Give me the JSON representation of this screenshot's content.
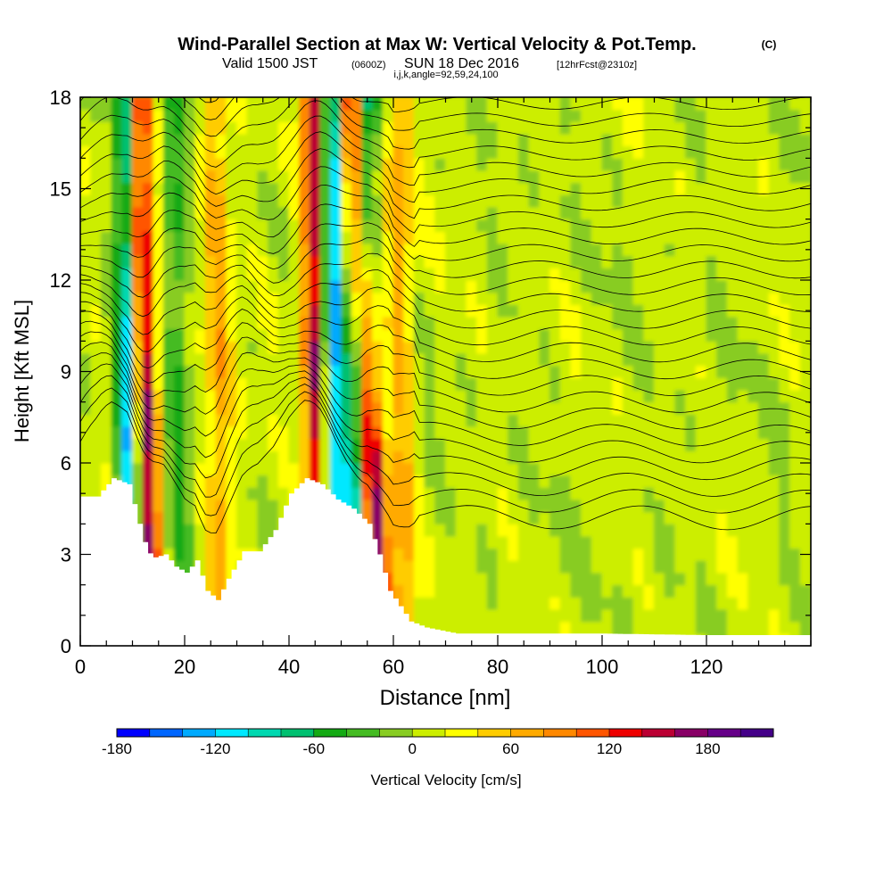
{
  "title": {
    "main": "Wind-Parallel Section at Max W: Vertical Velocity & Pot.Temp.",
    "copyright": "(C)",
    "valid_prefix": "Valid 1500 JST",
    "valid_utc": "(0600Z)",
    "valid_date": "SUN 18 Dec 2016",
    "forecast": "[12hrFcst@2310z]",
    "indices": "i,j,k,angle=92,59,24,100"
  },
  "chart_data": {
    "type": "heatmap",
    "title": "Wind-Parallel Section at Max W: Vertical Velocity & Pot.Temp.",
    "xlabel": "Distance [nm]",
    "ylabel": "Height [Kft MSL]",
    "xlim": [
      0,
      140
    ],
    "ylim": [
      0,
      18
    ],
    "x_ticks": [
      0,
      20,
      40,
      60,
      80,
      100,
      120
    ],
    "y_ticks": [
      0,
      3,
      6,
      9,
      12,
      15,
      18
    ],
    "x_minor_step": 5,
    "y_minor_step": 1,
    "colorbar": {
      "label": "Vertical Velocity [cm/s]",
      "min": -180,
      "max": 220,
      "step": 20,
      "tick_values": [
        -180,
        -120,
        -60,
        0,
        60,
        120,
        180
      ],
      "tick_labels": [
        "-180",
        "-120",
        "-60",
        "0",
        "60",
        "120",
        "180"
      ],
      "colors": [
        "#0000ff",
        "#0066ff",
        "#00aaff",
        "#00e8ff",
        "#00d8b0",
        "#00c070",
        "#14aa14",
        "#44bb22",
        "#88cc22",
        "#ccee00",
        "#ffff00",
        "#ffcc00",
        "#ffaa00",
        "#ff8800",
        "#ff5500",
        "#ee0000",
        "#bb0033",
        "#880066",
        "#660088",
        "#440088"
      ]
    },
    "terrain_kft": [
      [
        0,
        4.9
      ],
      [
        3,
        4.9
      ],
      [
        6,
        5.5
      ],
      [
        9,
        5.3
      ],
      [
        11,
        4.0
      ],
      [
        12.5,
        3.1
      ],
      [
        14,
        2.9
      ],
      [
        16,
        3.0
      ],
      [
        18,
        2.6
      ],
      [
        20,
        2.4
      ],
      [
        22,
        2.8
      ],
      [
        24,
        1.8
      ],
      [
        26,
        1.5
      ],
      [
        28,
        2.2
      ],
      [
        31,
        3.1
      ],
      [
        34,
        3.1
      ],
      [
        37,
        3.8
      ],
      [
        40,
        5.0
      ],
      [
        43,
        5.5
      ],
      [
        46,
        5.3
      ],
      [
        49,
        4.8
      ],
      [
        52,
        4.5
      ],
      [
        55,
        4.0
      ],
      [
        57,
        3.0
      ],
      [
        59,
        1.8
      ],
      [
        61,
        1.3
      ],
      [
        63,
        0.8
      ],
      [
        66,
        0.6
      ],
      [
        69,
        0.5
      ],
      [
        72,
        0.4
      ],
      [
        80,
        0.4
      ],
      [
        100,
        0.4
      ],
      [
        120,
        0.35
      ],
      [
        130,
        0.35
      ],
      [
        140,
        0.35
      ]
    ],
    "updraft_cores": [
      {
        "x_bottom": 13,
        "x_top": 11,
        "w_cm_s": 180
      },
      {
        "x_bottom": 46,
        "x_top": 45,
        "w_cm_s": 180
      },
      {
        "x_bottom": 57,
        "x_top": 52,
        "w_cm_s": 160
      },
      {
        "x_bottom": 27,
        "x_top": 26,
        "w_cm_s": 60
      },
      {
        "x_bottom": 62,
        "x_top": 61,
        "w_cm_s": 60
      }
    ],
    "downdraft_cores": [
      {
        "x_bottom": 10,
        "x_top": 9,
        "w_cm_s": -150
      },
      {
        "x_bottom": 48,
        "x_top": 48,
        "w_cm_s": -170
      },
      {
        "x_bottom": 52,
        "x_top": 55,
        "w_cm_s": -120
      },
      {
        "x_bottom": 19,
        "x_top": 18,
        "w_cm_s": -50
      }
    ],
    "theta_contours": {
      "count": 28,
      "base_height_kft": 4.0,
      "spacing_kft": 0.55,
      "line_color": "#000000"
    }
  }
}
